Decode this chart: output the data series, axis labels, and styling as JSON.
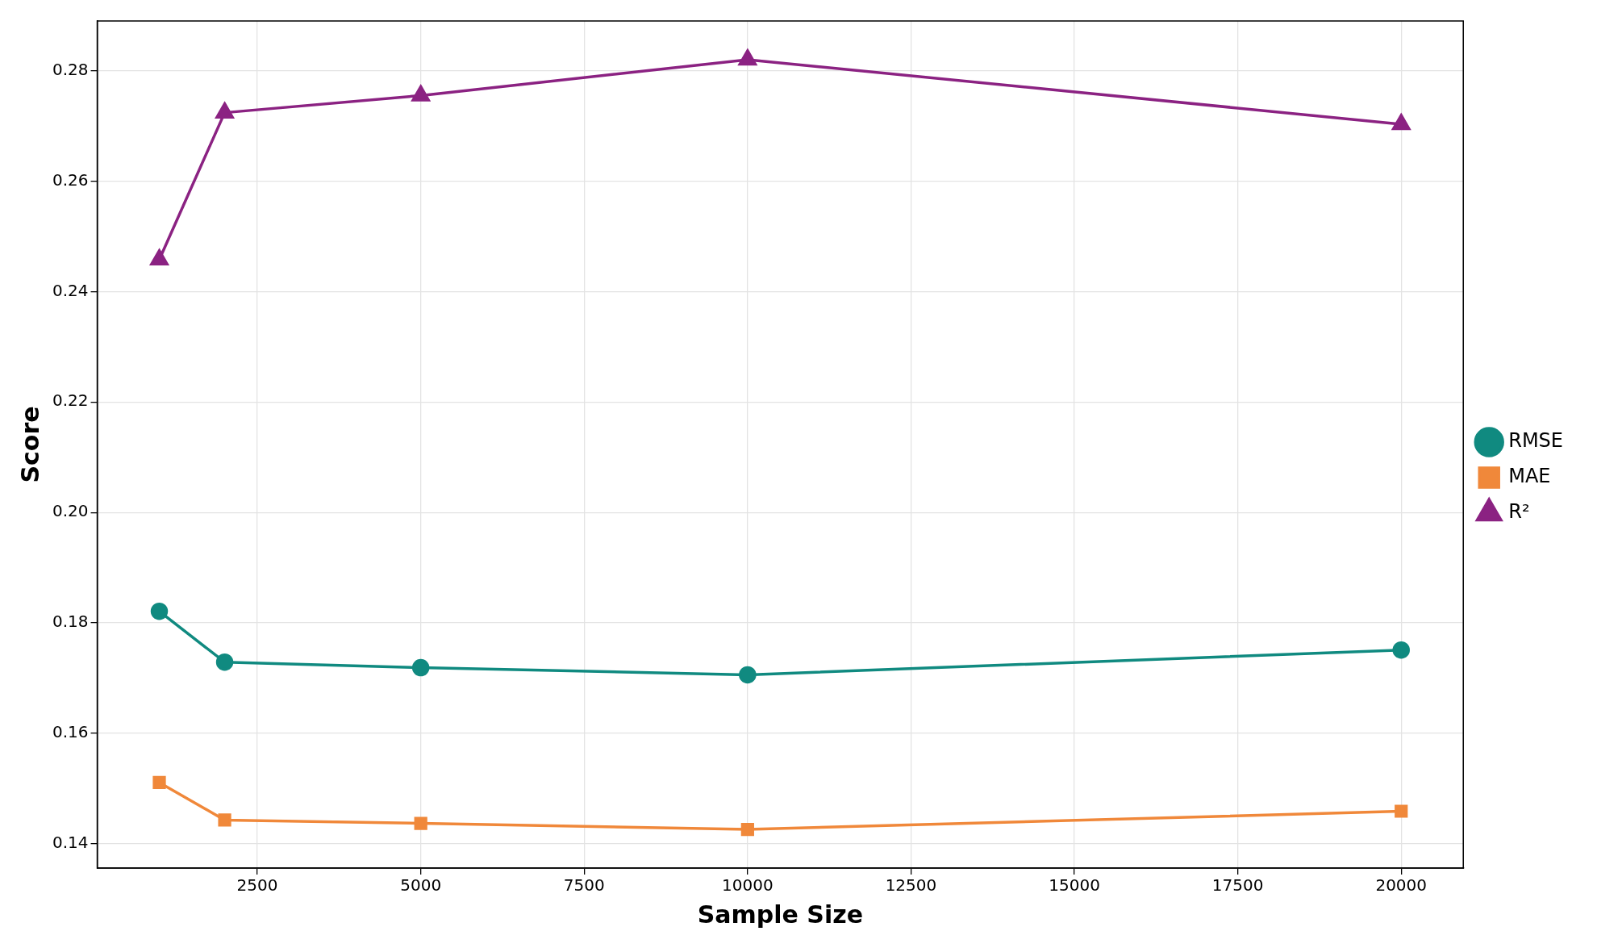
{
  "chart_data": {
    "type": "line",
    "xlabel": "Sample Size",
    "ylabel": "Score",
    "x": [
      1000,
      2000,
      5000,
      10000,
      20000
    ],
    "series": [
      {
        "name": "RMSE",
        "color": "#108a80",
        "marker": "circle",
        "values": [
          0.1821,
          0.1729,
          0.1719,
          0.1706,
          0.1751
        ]
      },
      {
        "name": "MAE",
        "color": "#f0883a",
        "marker": "square",
        "values": [
          0.1511,
          0.1443,
          0.1437,
          0.1426,
          0.1459
        ]
      },
      {
        "name": "R²",
        "color": "#8b2282",
        "marker": "triangle",
        "values": [
          0.2458,
          0.2724,
          0.2755,
          0.282,
          0.2703
        ]
      }
    ],
    "xlim": [
      50,
      20950
    ],
    "ylim": [
      0.1356,
      0.289
    ],
    "xticks": [
      2500,
      5000,
      7500,
      10000,
      12500,
      15000,
      17500,
      20000
    ],
    "yticks": [
      {
        "value": 0.14,
        "label": "0.14"
      },
      {
        "value": 0.16,
        "label": "0.16"
      },
      {
        "value": 0.18,
        "label": "0.18"
      },
      {
        "value": 0.2,
        "label": "0.20"
      },
      {
        "value": 0.22,
        "label": "0.22"
      },
      {
        "value": 0.24,
        "label": "0.24"
      },
      {
        "value": 0.26,
        "label": "0.26"
      },
      {
        "value": 0.28,
        "label": "0.28"
      }
    ],
    "grid": true,
    "legend": "right",
    "line_style": "solid"
  }
}
